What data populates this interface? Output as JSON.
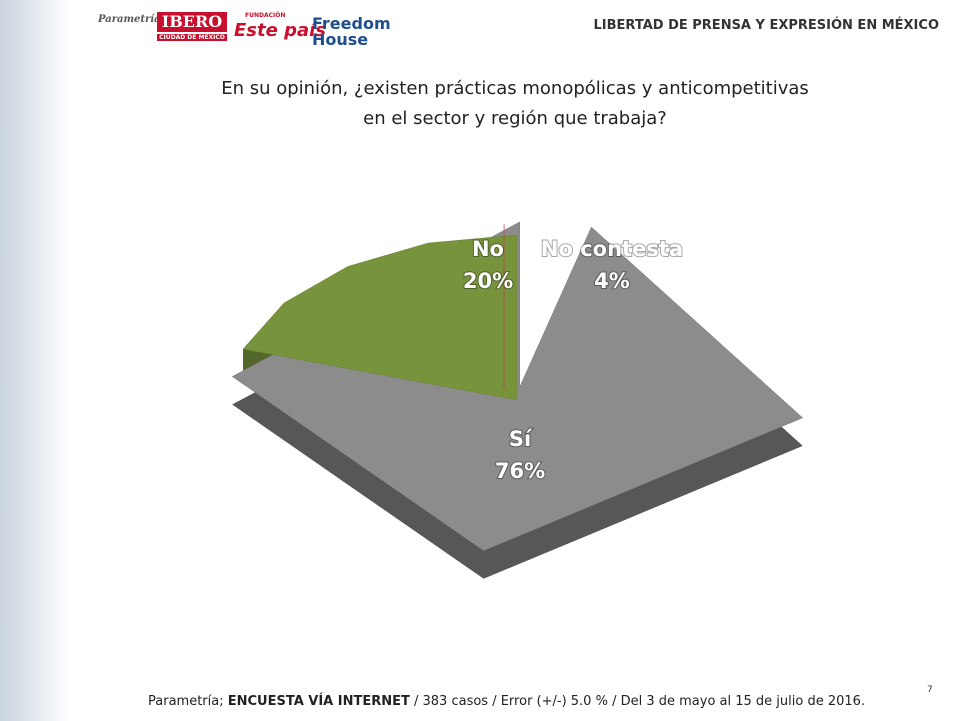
{
  "header": {
    "logos": [
      "Parametría",
      "IBERO",
      "CIUDAD DE MÉXICO",
      "FUNDACIÓN",
      "Este país",
      "Freedom",
      "House"
    ],
    "title": "LIBERTAD DE PRENSA Y EXPRESIÓN EN MÉXICO"
  },
  "chart_data": {
    "type": "pie",
    "title": "En su opinión, ¿existen prácticas monopólicas y anticompetitivas en el sector y región que trabaja?",
    "categories": [
      "No contesta",
      "Sí",
      "No"
    ],
    "values": [
      4,
      76,
      20
    ],
    "value_labels": [
      "4%",
      "76%",
      "20%"
    ],
    "colors": [
      "#8c8c8c",
      "#77933c",
      "#c0504d"
    ]
  },
  "footer": {
    "source": [
      "Parametría; ",
      "ENCUESTA VÍA INTERNET",
      " /  383 casos / Error (+/-) 5.0 % / Del 3 de mayo al 15 de julio de 2016."
    ],
    "page": "7"
  }
}
